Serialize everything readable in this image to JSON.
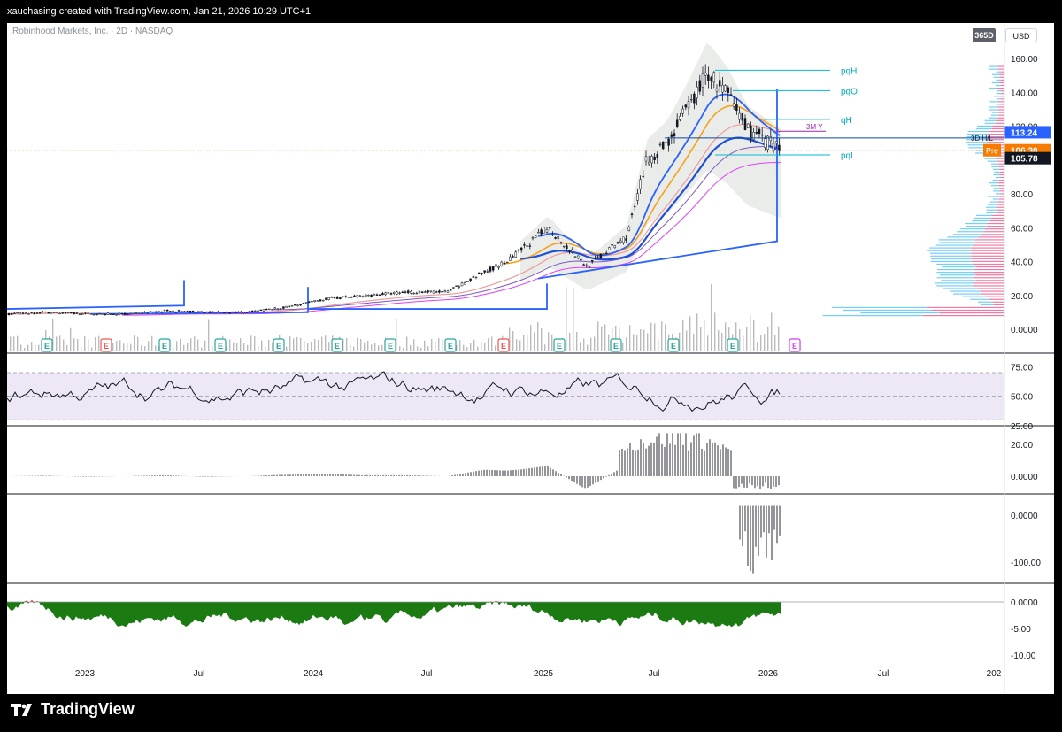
{
  "header": {
    "caption": "xauchasing created with TradingView.com, Jan 21, 2026 10:29 UTC+1",
    "symbol": "Robinhood Markets, Inc. · 2D · NASDAQ",
    "range_button": "365D",
    "currency_button": "USD"
  },
  "footer": {
    "brand": "TradingView"
  },
  "colors": {
    "up": "#26a69a",
    "down": "#ef5350",
    "price_line": "#131722",
    "vwap_blue": "#2962ff",
    "ema_orange": "#f7a21b",
    "band_fill": "#e8eae8",
    "cyan_lines": "#00bcd4",
    "rsi_fill": "#ede7f6"
  },
  "chart_data": [
    {
      "type": "line",
      "panel": "price",
      "x_axis_labels": [
        "2023",
        "Jul",
        "2024",
        "Jul",
        "2025",
        "Jul",
        "2026",
        "Jul",
        "202"
      ],
      "y_ticks": [
        "160.00",
        "140.00",
        "120.00",
        "100.00",
        "80.00",
        "60.00",
        "40.00",
        "20.00",
        "0.0000"
      ],
      "ylim": [
        0,
        160
      ],
      "close_series": {
        "dates": [
          "2022-11",
          "2023-01",
          "2023-03",
          "2023-05",
          "2023-07",
          "2023-09",
          "2023-11",
          "2024-01",
          "2024-03",
          "2024-05",
          "2024-07",
          "2024-09",
          "2024-11",
          "2024-12",
          "2025-02",
          "2025-04",
          "2025-06",
          "2025-07",
          "2025-08",
          "2025-09",
          "2025-10",
          "2025-11",
          "2025-12",
          "2026-01-21"
        ],
        "values": [
          9,
          10,
          9,
          9,
          11,
          10,
          10,
          13,
          18,
          20,
          22,
          22,
          35,
          40,
          60,
          37,
          55,
          100,
          110,
          130,
          152,
          138,
          118,
          105.78
        ]
      },
      "price_labels": [
        {
          "text": "113.24",
          "value": 113.24,
          "color": "#2962ff"
        },
        {
          "text": "106.30",
          "value": 106.3,
          "color": "#f57c00",
          "tag": "Pre"
        },
        {
          "text": "105.78",
          "value": 105.78,
          "color": "#131722"
        }
      ],
      "level_labels": [
        {
          "text": "pqH",
          "value": 153
        },
        {
          "text": "pqO",
          "value": 141
        },
        {
          "text": "qH",
          "value": 124
        },
        {
          "text": "3M Y",
          "value": 117
        },
        {
          "text": "3D H/L",
          "value": 113
        },
        {
          "text": "pqL",
          "value": 103
        }
      ],
      "earnings_markers": [
        {
          "text": "E",
          "kind": "up"
        },
        {
          "text": "E",
          "kind": "down"
        },
        {
          "text": "E",
          "kind": "up"
        },
        {
          "text": "E",
          "kind": "up"
        },
        {
          "text": "E",
          "kind": "up"
        },
        {
          "text": "E",
          "kind": "up"
        },
        {
          "text": "E",
          "kind": "up"
        },
        {
          "text": "E",
          "kind": "up"
        },
        {
          "text": "E",
          "kind": "down"
        },
        {
          "text": "E",
          "kind": "up"
        },
        {
          "text": "E",
          "kind": "up"
        },
        {
          "text": "E",
          "kind": "up"
        },
        {
          "text": "E",
          "kind": "up"
        },
        {
          "text": "E",
          "kind": "up"
        },
        {
          "text": "E",
          "kind": "future"
        }
      ]
    },
    {
      "type": "line",
      "panel": "rsi",
      "y_ticks": [
        "75.00",
        "50.00",
        "25.00"
      ],
      "ylim": [
        25,
        85
      ]
    },
    {
      "type": "bar",
      "panel": "oscillator",
      "y_ticks": [
        "20.00",
        "0.0000"
      ],
      "ylim": [
        -10,
        30
      ]
    },
    {
      "type": "bar",
      "panel": "oscillator2",
      "y_ticks": [
        "0.0000",
        "-100.00"
      ],
      "ylim": [
        -140,
        40
      ]
    },
    {
      "type": "area",
      "panel": "drawdown",
      "y_ticks": [
        "0.0000",
        "-5.00",
        "-10.00"
      ],
      "ylim": [
        -11,
        3
      ]
    }
  ]
}
